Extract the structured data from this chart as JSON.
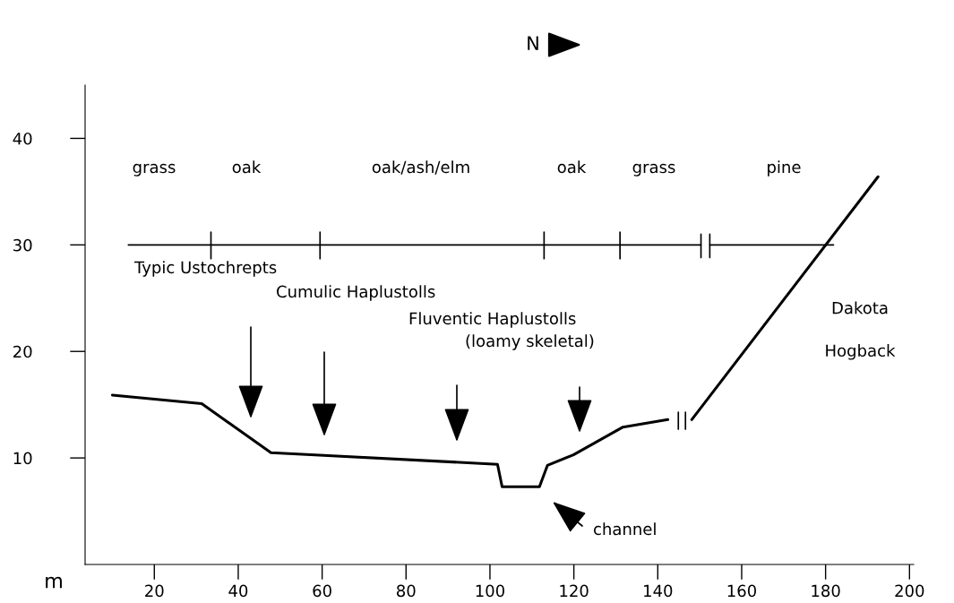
{
  "chart_data": {
    "type": "line",
    "title": "N",
    "ylabel": "m",
    "xlim": [
      3.5,
      201
    ],
    "xticks": [
      20,
      40,
      60,
      80,
      100,
      120,
      140,
      160,
      180,
      200
    ],
    "ylim": [
      0,
      45
    ],
    "yticks": [
      10,
      20,
      30,
      40
    ],
    "grid": false,
    "legend": false,
    "marker": "none",
    "line_style": "solid",
    "series": [
      {
        "color": "#000000",
        "x": [
          10,
          31.3,
          47.8,
          101.8,
          102.9,
          111.8,
          113.7,
          119.9,
          131.7,
          142.4,
          null,
          148.1,
          192.5
        ],
        "values": [
          15.9,
          15.1,
          10.5,
          9.4,
          7.3,
          7.3,
          9.3,
          10.3,
          12.9,
          13.6,
          null,
          13.6,
          36.4
        ]
      },
      {
        "color": "#000000",
        "x": [
          13.8,
          150.3,
          null,
          152.4,
          181.9
        ],
        "values": [
          30,
          30,
          null,
          30,
          30
        ]
      },
      {
        "color": "#000000",
        "x": [
          33.5,
          33.5,
          null,
          59.5,
          59.5,
          null,
          112.9,
          112.9,
          null,
          131.0,
          131.0,
          null,
          150.3,
          150.3,
          null,
          152.4,
          152.4,
          null,
          144.9,
          144.9,
          null,
          146.6,
          146.6
        ],
        "values": [
          28.7,
          31.2,
          null,
          28.7,
          31.2,
          null,
          28.7,
          31.2,
          null,
          28.7,
          31.2,
          null,
          28.8,
          31.0,
          null,
          28.8,
          31.0,
          null,
          12.7,
          14.3,
          null,
          12.7,
          14.3
        ]
      }
    ],
    "annotations": [
      "grass",
      "oak",
      "oak/ash/elm",
      "oak",
      "grass",
      "pine",
      "Typic Ustochrepts",
      "Cumulic Haplustolls",
      "Fluventic Haplustolls",
      "(loamy skeletal)",
      "channel",
      "Dakota\nHogback"
    ]
  }
}
